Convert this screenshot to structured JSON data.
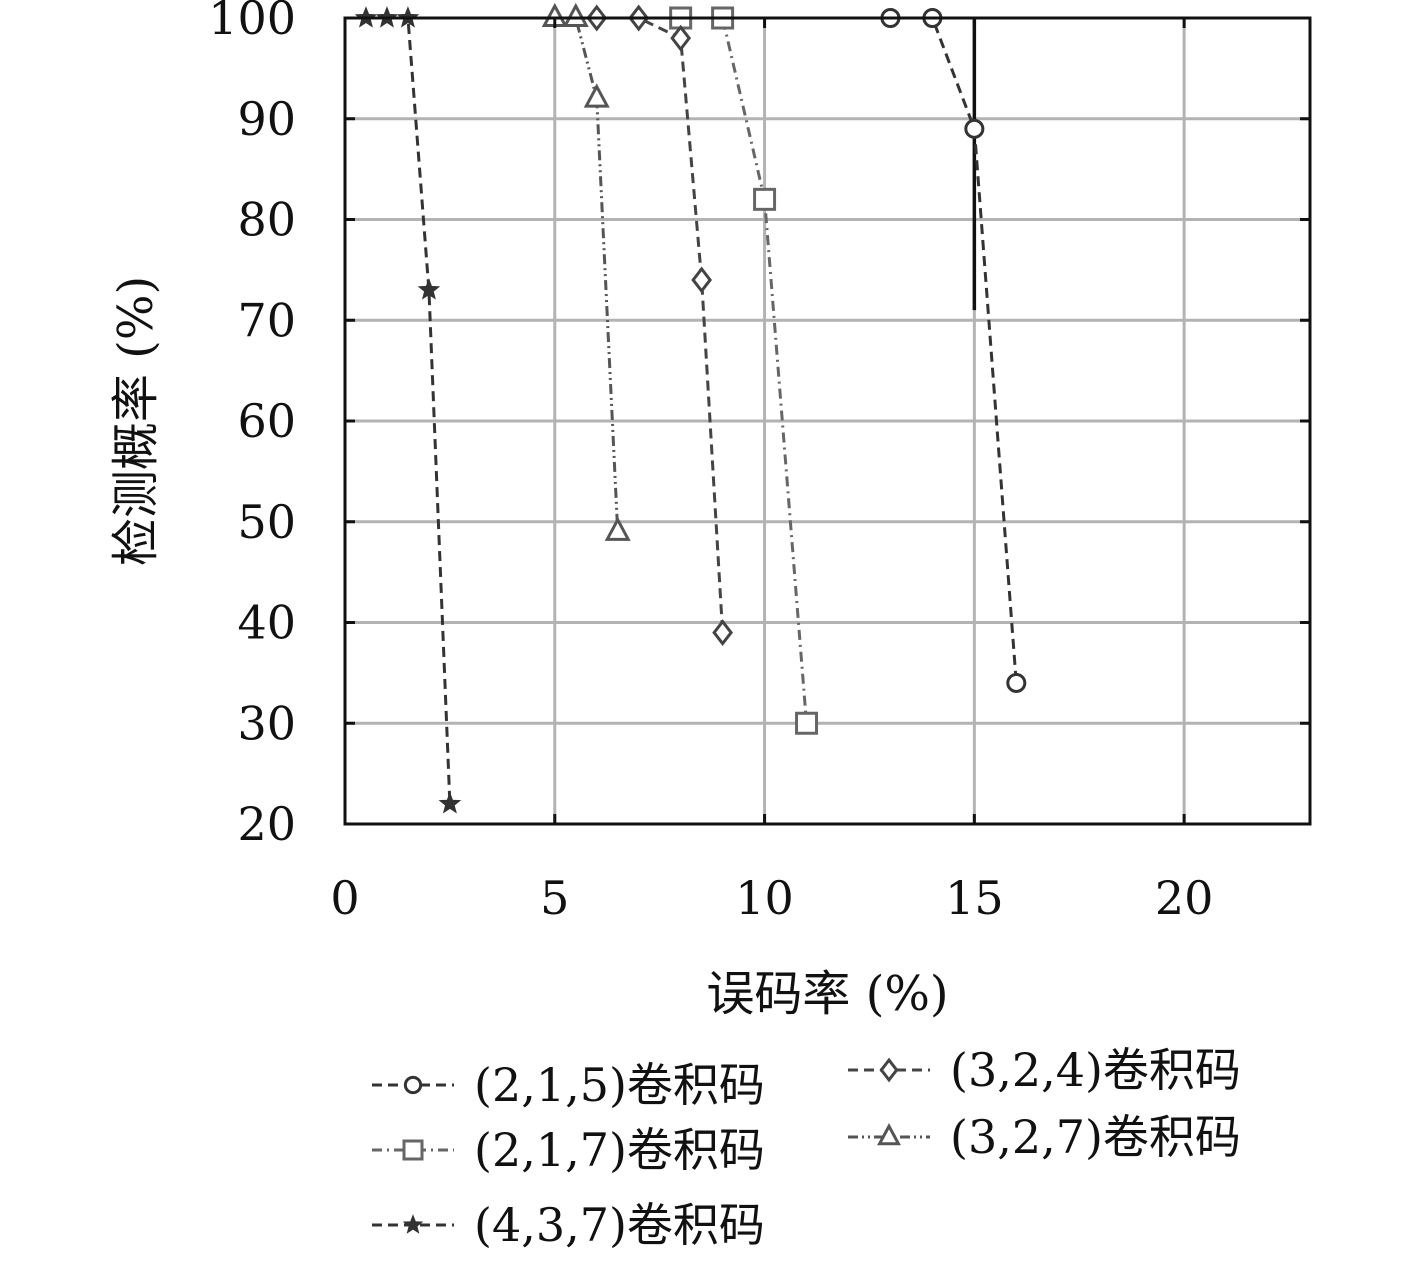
{
  "chart_data": {
    "type": "line",
    "title": "",
    "xlabel": "误码率 (%)",
    "ylabel": "检测概率 (%)",
    "xlim": [
      0,
      23
    ],
    "ylim": [
      20,
      100
    ],
    "xticks": [
      0,
      5,
      10,
      15,
      20
    ],
    "yticks": [
      20,
      30,
      40,
      50,
      60,
      70,
      80,
      90,
      100
    ],
    "grid": true,
    "legend_position": "bottom",
    "series": [
      {
        "name": "(2,1,5)卷积码",
        "marker": "circle",
        "dash": "dashed",
        "color": "#333333",
        "x": [
          13,
          14,
          15,
          16
        ],
        "y": [
          100,
          100,
          89,
          34
        ]
      },
      {
        "name": "(2,1,7)卷积码",
        "marker": "square",
        "dash": "dashdot",
        "color": "#666666",
        "x": [
          8,
          9,
          10,
          11
        ],
        "y": [
          100,
          100,
          82,
          30
        ]
      },
      {
        "name": "(4,3,7)卷积码",
        "marker": "star",
        "dash": "dashed",
        "color": "#333333",
        "x": [
          0.5,
          1,
          1.5,
          2,
          2.5
        ],
        "y": [
          100,
          100,
          100,
          73,
          22
        ]
      },
      {
        "name": "(3,2,4)卷积码",
        "marker": "diamond",
        "dash": "dashed",
        "color": "#444444",
        "x": [
          6,
          7,
          8,
          8.5,
          9
        ],
        "y": [
          100,
          100,
          98,
          74,
          39
        ]
      },
      {
        "name": "(3,2,7)卷积码",
        "marker": "triangle",
        "dash": "dashdotdot",
        "color": "#555555",
        "x": [
          5,
          5.5,
          6,
          6.5
        ],
        "y": [
          100,
          100,
          92,
          49
        ]
      }
    ],
    "annotations": [
      {
        "type": "vertical-line",
        "x": 15,
        "y_from": 71,
        "y_to": 100
      }
    ]
  }
}
